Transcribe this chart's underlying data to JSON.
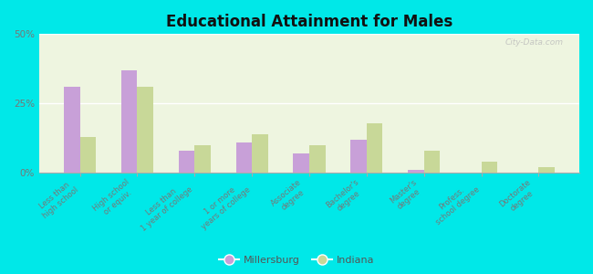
{
  "title": "Educational Attainment for Males",
  "categories": [
    "Less than\nhigh school",
    "High school\nor equiv.",
    "Less than\n1 year of college",
    "1 or more\nyears of college",
    "Associate\ndegree",
    "Bachelor's\ndegree",
    "Master's\ndegree",
    "Profess.\nschool degree",
    "Doctorate\ndegree"
  ],
  "millersburg": [
    31,
    37,
    8,
    11,
    7,
    12,
    1,
    0,
    0
  ],
  "indiana": [
    13,
    31,
    10,
    14,
    10,
    18,
    8,
    4,
    2
  ],
  "millersburg_color": "#c8a0d8",
  "indiana_color": "#c8d898",
  "background_outer": "#00e8e8",
  "background_inner_top": "#eef5e0",
  "background_inner_bottom": "#d8f0c0",
  "ylim": [
    0,
    50
  ],
  "yticks": [
    0,
    25,
    50
  ],
  "ytick_labels": [
    "0%",
    "25%",
    "50%"
  ],
  "bar_width": 0.28,
  "legend_millersburg": "Millersburg",
  "legend_indiana": "Indiana",
  "watermark": "City-Data.com"
}
